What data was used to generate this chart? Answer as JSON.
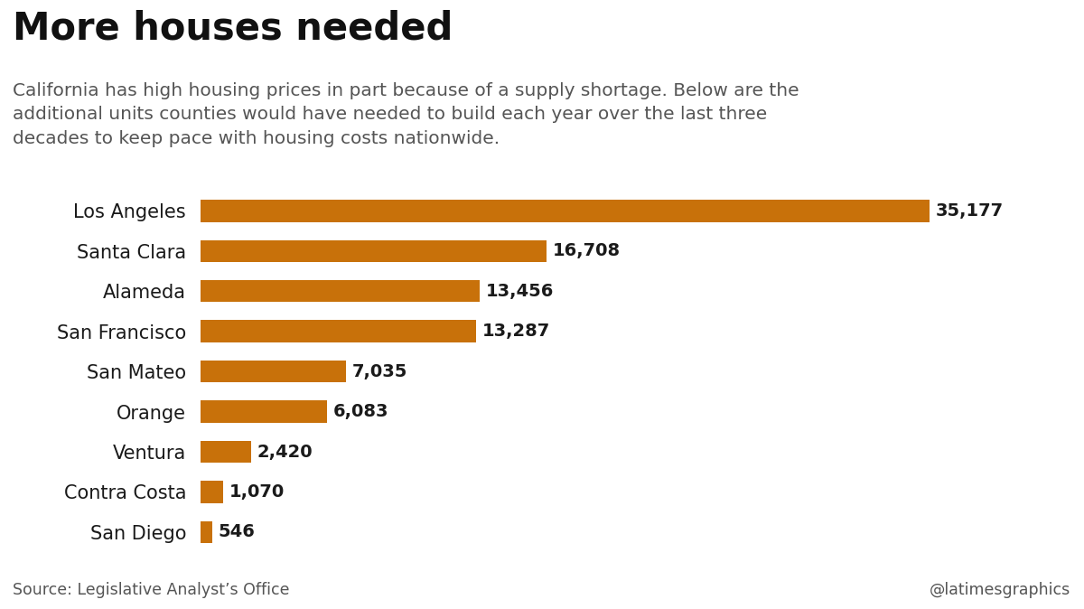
{
  "title": "More houses needed",
  "subtitle": "California has high housing prices in part because of a supply shortage. Below are the\nadditional units counties would have needed to build each year over the last three\ndecades to keep pace with housing costs nationwide.",
  "categories": [
    "Los Angeles",
    "Santa Clara",
    "Alameda",
    "San Francisco",
    "San Mateo",
    "Orange",
    "Ventura",
    "Contra Costa",
    "San Diego"
  ],
  "values": [
    35177,
    16708,
    13456,
    13287,
    7035,
    6083,
    2420,
    1070,
    546
  ],
  "labels": [
    "35,177",
    "16,708",
    "13,456",
    "13,287",
    "7,035",
    "6,083",
    "2,420",
    "1,070",
    "546"
  ],
  "bar_color": "#C8710A",
  "background_color": "#FFFFFF",
  "source_text": "Source: Legislative Analyst’s Office",
  "credit_text": "@latimesgraphics",
  "title_fontsize": 30,
  "subtitle_fontsize": 14.5,
  "label_fontsize": 14,
  "category_fontsize": 15,
  "source_fontsize": 12.5
}
